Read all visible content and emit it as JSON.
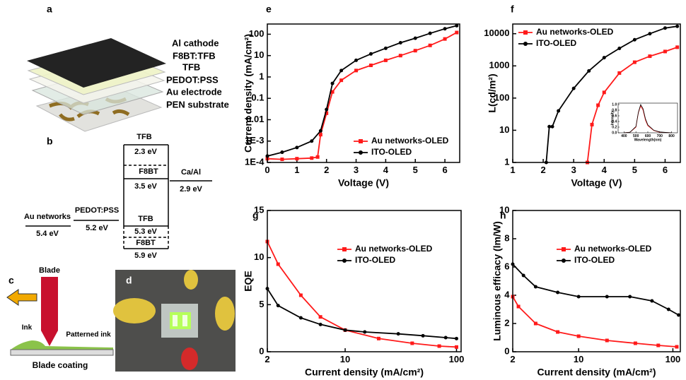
{
  "panel_a": {
    "label": "a",
    "layers": [
      "Al cathode",
      "F8BT:TFB",
      "TFB",
      "PEDOT:PSS",
      "Au electrode",
      "PEN substrate"
    ]
  },
  "panel_b": {
    "label": "b",
    "levels": [
      {
        "name": "Au networks",
        "energy": "5.4 eV"
      },
      {
        "name": "PEDOT:PSS",
        "energy": "5.2 eV"
      },
      {
        "name": "TFB",
        "energy": "2.3 eV"
      },
      {
        "name": "F8BT",
        "energy": "3.5 eV"
      },
      {
        "name": "TFB",
        "energy": "5.3 eV"
      },
      {
        "name": "F8BT",
        "energy": "5.9 eV"
      },
      {
        "name": "Ca/Al",
        "energy": "2.9 eV"
      }
    ]
  },
  "panel_c": {
    "label": "c",
    "blade": "Blade",
    "ink": "Ink",
    "patterned": "Patterned ink",
    "caption": "Blade coating"
  },
  "panel_d": {
    "label": "d"
  },
  "chart_data": [
    {
      "type": "line",
      "label": "e",
      "xlabel": "Voltage (V)",
      "ylabel": "Current density (mA/cm²)",
      "xlim": [
        0,
        6.5
      ],
      "xticks": [
        0,
        1,
        2,
        3,
        4,
        5,
        6
      ],
      "yscale": "log",
      "ylim": [
        0.0001,
        300
      ],
      "yticks": [
        {
          "value": 0.0001,
          "label": "1E-4"
        },
        {
          "value": 0.001,
          "label": "1E-3"
        },
        0.01,
        0.1,
        1,
        10,
        100
      ],
      "legend": "lower right",
      "series": [
        {
          "name": "Au networks-OLED",
          "color": "#ff1a1a",
          "marker": "square",
          "x": [
            0,
            0.5,
            1.0,
            1.5,
            1.7,
            1.8,
            2.0,
            2.2,
            2.5,
            3.0,
            3.5,
            4.0,
            4.5,
            5.0,
            5.5,
            6.0,
            6.4
          ],
          "values": [
            0.00015,
            0.00014,
            0.00015,
            0.00016,
            0.00018,
            0.002,
            0.02,
            0.2,
            0.7,
            2,
            3.5,
            6,
            10,
            17,
            30,
            60,
            120
          ]
        },
        {
          "name": "ITO-OLED",
          "color": "#000000",
          "marker": "circle",
          "x": [
            0,
            0.5,
            1.0,
            1.5,
            1.8,
            2.0,
            2.2,
            2.5,
            3.0,
            3.5,
            4.0,
            4.5,
            5.0,
            5.5,
            6.0,
            6.4
          ],
          "values": [
            0.0002,
            0.0003,
            0.0005,
            0.001,
            0.003,
            0.03,
            0.5,
            2,
            6,
            12,
            22,
            40,
            65,
            110,
            180,
            250
          ]
        }
      ]
    },
    {
      "type": "line",
      "label": "f",
      "xlabel": "Voltage (V)",
      "ylabel": "L(cd/m²)",
      "xlim": [
        1,
        6.5
      ],
      "xticks": [
        1,
        2,
        3,
        4,
        5,
        6
      ],
      "yscale": "log",
      "ylim": [
        1,
        20000
      ],
      "yticks": [
        1,
        10,
        100,
        1000,
        10000
      ],
      "legend": "upper left",
      "series": [
        {
          "name": "Au networks-OLED",
          "color": "#ff1a1a",
          "marker": "square",
          "x": [
            3.45,
            3.6,
            3.8,
            4.0,
            4.5,
            5.0,
            5.5,
            6.0,
            6.4
          ],
          "values": [
            1,
            15,
            60,
            150,
            600,
            1300,
            2000,
            2800,
            3800
          ]
        },
        {
          "name": "ITO-OLED",
          "color": "#000000",
          "marker": "circle",
          "x": [
            2.1,
            2.2,
            2.3,
            2.5,
            3.0,
            3.5,
            4.0,
            4.5,
            5.0,
            5.5,
            6.0,
            6.4
          ],
          "values": [
            1,
            13,
            13,
            40,
            200,
            700,
            1800,
            3500,
            6500,
            10000,
            15000,
            17000
          ]
        }
      ]
    },
    {
      "type": "line",
      "label": "g",
      "xlabel": "Current density (mA/cm²)",
      "ylabel": "EQE",
      "xscale": "log",
      "xlim": [
        2,
        110
      ],
      "xticks": [
        2,
        10,
        100
      ],
      "ylim": [
        0,
        15
      ],
      "yticks": [
        0,
        5,
        10,
        15
      ],
      "legend": "center right",
      "series": [
        {
          "name": "Au networks-OLED",
          "color": "#ff1a1a",
          "marker": "square",
          "x": [
            2,
            2.5,
            4,
            6,
            10,
            20,
            40,
            70,
            100
          ],
          "values": [
            11.7,
            9.3,
            6,
            3.7,
            2.3,
            1.4,
            0.9,
            0.6,
            0.5
          ]
        },
        {
          "name": "ITO-OLED",
          "color": "#000000",
          "marker": "circle",
          "x": [
            2,
            2.5,
            4,
            6,
            10,
            15,
            30,
            50,
            80,
            100
          ],
          "values": [
            6.7,
            4.9,
            3.6,
            2.9,
            2.3,
            2.1,
            1.9,
            1.7,
            1.5,
            1.4
          ]
        }
      ]
    },
    {
      "type": "line",
      "label": "h",
      "xlabel": "Current density (mA/cm²)",
      "ylabel": "Luminous efficacy (lm/W)",
      "xscale": "log",
      "xlim": [
        2,
        120
      ],
      "xticks": [
        2,
        10,
        100
      ],
      "ylim": [
        0,
        10
      ],
      "yticks": [
        0,
        2,
        4,
        6,
        8,
        10
      ],
      "legend": "center right",
      "series": [
        {
          "name": "Au networks-OLED",
          "color": "#ff1a1a",
          "marker": "square",
          "x": [
            2,
            2.3,
            3.5,
            6,
            10,
            20,
            40,
            70,
            110
          ],
          "values": [
            3.9,
            3.2,
            2.0,
            1.4,
            1.1,
            0.8,
            0.6,
            0.45,
            0.35
          ]
        },
        {
          "name": "ITO-OLED",
          "color": "#000000",
          "marker": "circle",
          "x": [
            2,
            2.6,
            3.5,
            6,
            10,
            20,
            35,
            60,
            90,
            115
          ],
          "values": [
            6.2,
            5.4,
            4.6,
            4.2,
            3.9,
            3.9,
            3.9,
            3.6,
            3.0,
            2.6
          ]
        }
      ]
    },
    {
      "type": "line",
      "xlabel": "Wavelength(nm)",
      "ylabel": "Intensity",
      "xlim": [
        350,
        850
      ],
      "xticks": [
        400,
        500,
        600,
        700,
        800
      ],
      "ylim": [
        0,
        1.05
      ],
      "yticks": [
        {
          "value": 0,
          "label": "0.0"
        },
        0.2,
        0.4,
        0.6,
        0.8,
        {
          "value": 1,
          "label": "1.0"
        }
      ],
      "series": [
        {
          "color": "#ff1a1a",
          "x": [
            400,
            450,
            500,
            520,
            540,
            560,
            580,
            600,
            650,
            700,
            800
          ],
          "values": [
            0,
            0.02,
            0.2,
            0.7,
            0.95,
            0.8,
            0.45,
            0.25,
            0.08,
            0.02,
            0
          ]
        },
        {
          "color": "#000000",
          "x": [
            400,
            450,
            500,
            520,
            540,
            560,
            580,
            600,
            650,
            700,
            800
          ],
          "values": [
            0,
            0.02,
            0.22,
            0.72,
            1.0,
            0.85,
            0.5,
            0.28,
            0.09,
            0.03,
            0
          ]
        }
      ]
    }
  ]
}
